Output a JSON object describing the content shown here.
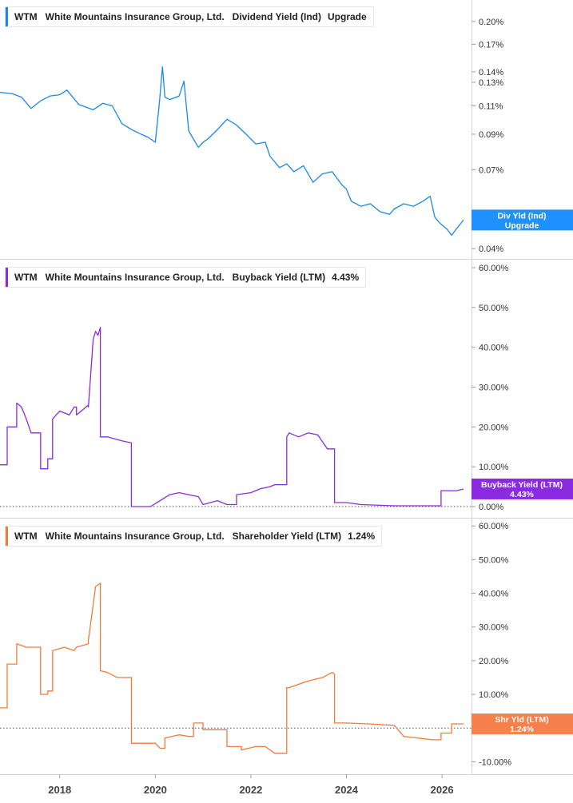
{
  "chart_data": [
    {
      "type": "line",
      "ticker": "WTM",
      "company": "White Mountains Insurance Group, Ltd.",
      "metric": "Dividend Yield (Ind)",
      "value_label": "Upgrade",
      "color": "#1a88e6",
      "tag": {
        "line1": "Div Yld (Ind)",
        "line2": "Upgrade",
        "bg": "#1e90ff"
      },
      "scale": "log",
      "ylim": [
        0.0385,
        0.225
      ],
      "yticks": [
        0.04,
        0.07,
        0.09,
        0.11,
        0.13,
        0.14,
        0.17,
        0.2
      ],
      "ytick_labels": [
        "0.04%",
        "0.07%",
        "0.09%",
        "0.11%",
        "0.13%",
        "0.14%",
        "0.17%",
        "0.20%"
      ],
      "zero_line": false,
      "series": [
        {
          "x": [
            2016.75,
            2017.0,
            2017.2,
            2017.4,
            2017.6,
            2017.8,
            2018.0,
            2018.15,
            2018.4,
            2018.7,
            2018.9,
            2019.1,
            2019.3,
            2019.5,
            2019.7,
            2019.85,
            2020.0,
            2020.08,
            2020.15,
            2020.2,
            2020.3,
            2020.5,
            2020.6,
            2020.7,
            2020.9,
            2021.0,
            2021.1,
            2021.3,
            2021.5,
            2021.7,
            2021.9,
            2022.1,
            2022.3,
            2022.4,
            2022.6,
            2022.75,
            2022.9,
            2023.1,
            2023.3,
            2023.5,
            2023.7,
            2023.9,
            2024.0,
            2024.1,
            2024.3,
            2024.5,
            2024.7,
            2024.9,
            2025.0,
            2025.2,
            2025.4,
            2025.6,
            2025.75,
            2025.85,
            2025.95,
            2026.1,
            2026.2,
            2026.3,
            2026.45
          ],
          "y": [
            0.121,
            0.12,
            0.117,
            0.108,
            0.114,
            0.118,
            0.119,
            0.123,
            0.111,
            0.107,
            0.112,
            0.11,
            0.097,
            0.093,
            0.09,
            0.088,
            0.085,
            0.11,
            0.145,
            0.117,
            0.115,
            0.118,
            0.131,
            0.092,
            0.082,
            0.085,
            0.087,
            0.093,
            0.1,
            0.096,
            0.09,
            0.084,
            0.085,
            0.077,
            0.071,
            0.073,
            0.069,
            0.072,
            0.064,
            0.068,
            0.069,
            0.063,
            0.061,
            0.056,
            0.054,
            0.055,
            0.052,
            0.051,
            0.053,
            0.055,
            0.054,
            0.056,
            0.058,
            0.05,
            0.048,
            0.046,
            0.044,
            0.046,
            0.049
          ]
        }
      ]
    },
    {
      "type": "line",
      "ticker": "WTM",
      "company": "White Mountains Insurance Group, Ltd.",
      "metric": "Buyback Yield (LTM)",
      "value_label": "4.43%",
      "color": "#8a2be2",
      "tag": {
        "line1": "Buyback Yield (LTM)",
        "line2": "4.43%",
        "bg": "#8a2be2"
      },
      "scale": "linear",
      "ylim": [
        -2,
        61
      ],
      "yticks": [
        0,
        10,
        20,
        30,
        40,
        50,
        60
      ],
      "ytick_labels": [
        "0.00%",
        "10.00%",
        "20.00%",
        "30.00%",
        "40.00%",
        "50.00%",
        "60.00%"
      ],
      "zero_line": true,
      "series": [
        {
          "x": [
            2016.75,
            2016.9,
            2016.9,
            2017.1,
            2017.1,
            2017.2,
            2017.3,
            2017.4,
            2017.6,
            2017.6,
            2017.75,
            2017.75,
            2017.85,
            2017.85,
            2018.0,
            2018.2,
            2018.3,
            2018.35,
            2018.35,
            2018.6,
            2018.6,
            2018.7,
            2018.75,
            2018.8,
            2018.85,
            2018.85,
            2019.0,
            2019.3,
            2019.5,
            2019.5,
            2019.9,
            2020.1,
            2020.3,
            2020.5,
            2020.7,
            2020.9,
            2021.0,
            2021.3,
            2021.5,
            2021.7,
            2021.7,
            2022.0,
            2022.2,
            2022.4,
            2022.5,
            2022.75,
            2022.75,
            2022.8,
            2023.0,
            2023.2,
            2023.4,
            2023.6,
            2023.65,
            2023.75,
            2023.75,
            2024.0,
            2024.3,
            2025.0,
            2025.5,
            2025.98,
            2025.98,
            2026.3,
            2026.45
          ],
          "y": [
            10.5,
            10.5,
            20,
            20,
            26,
            25,
            22,
            18.5,
            18.5,
            9.5,
            9.5,
            12,
            12,
            22,
            24,
            23,
            25,
            25,
            23,
            25.5,
            25,
            42,
            44,
            43,
            45,
            17.5,
            17.5,
            16.5,
            16,
            0,
            0,
            1.5,
            3,
            3.5,
            3,
            2.5,
            0.5,
            1.5,
            0.5,
            0.5,
            3,
            3.5,
            4.5,
            5,
            5.5,
            5.5,
            17.5,
            18.5,
            17.5,
            18.5,
            18,
            14.5,
            14.5,
            14.5,
            1,
            1,
            0.5,
            0.2,
            0.2,
            0.2,
            4,
            4,
            4.43
          ]
        }
      ]
    },
    {
      "type": "line",
      "ticker": "WTM",
      "company": "White Mountains Insurance Group, Ltd.",
      "metric": "Shareholder Yield (LTM)",
      "value_label": "1.24%",
      "color": "#f07c3c",
      "tag": {
        "line1": "Shr Yld (LTM)",
        "line2": "1.24%",
        "bg": "#f6814d"
      },
      "scale": "linear",
      "ylim": [
        -13,
        61
      ],
      "yticks": [
        -10,
        0,
        10,
        20,
        30,
        40,
        50,
        60
      ],
      "ytick_labels": [
        "-10.00%",
        "0.00%",
        "10.00%",
        "20.00%",
        "30.00%",
        "40.00%",
        "50.00%",
        "60.00%"
      ],
      "zero_line": true,
      "series": [
        {
          "x": [
            2016.75,
            2016.9,
            2016.9,
            2017.1,
            2017.1,
            2017.3,
            2017.6,
            2017.6,
            2017.75,
            2017.75,
            2017.85,
            2017.85,
            2018.1,
            2018.3,
            2018.35,
            2018.35,
            2018.6,
            2018.6,
            2018.75,
            2018.85,
            2018.85,
            2019.0,
            2019.2,
            2019.5,
            2019.5,
            2019.7,
            2020.0,
            2020.1,
            2020.2,
            2020.2,
            2020.5,
            2020.7,
            2020.8,
            2020.8,
            2021.0,
            2021.0,
            2021.3,
            2021.5,
            2021.5,
            2021.8,
            2021.8,
            2022.1,
            2022.3,
            2022.5,
            2022.75,
            2022.75,
            2022.8,
            2023.2,
            2023.5,
            2023.7,
            2023.75,
            2023.75,
            2024.0,
            2024.5,
            2025.0,
            2025.2,
            2025.5,
            2025.8,
            2025.98,
            2025.98,
            2026.2,
            2026.2,
            2026.45
          ],
          "y": [
            6,
            6,
            19,
            19,
            25,
            24,
            24,
            10,
            10,
            11,
            11,
            23,
            24,
            23,
            24,
            24,
            25,
            26,
            42,
            43,
            17,
            16.5,
            15,
            15,
            -4.5,
            -4.5,
            -4.5,
            -6,
            -6,
            -3,
            -2,
            -2.5,
            -2.5,
            1.5,
            1.5,
            -0.5,
            -0.5,
            -0.5,
            -5.5,
            -5.5,
            -6.5,
            -5.5,
            -5.5,
            -7.5,
            -7.5,
            12,
            12,
            14,
            15,
            16.5,
            16,
            1.5,
            1.5,
            1.2,
            0.8,
            -2.5,
            -3,
            -3.5,
            -3.5,
            -1.5,
            -1.5,
            1.24,
            1.24
          ]
        }
      ]
    }
  ],
  "x_axis": {
    "ticks": [
      2018,
      2020,
      2022,
      2024,
      2026
    ],
    "tick_labels": [
      "2018",
      "2020",
      "2022",
      "2024",
      "2026"
    ],
    "xlim": [
      2016.75,
      2026.55
    ]
  }
}
